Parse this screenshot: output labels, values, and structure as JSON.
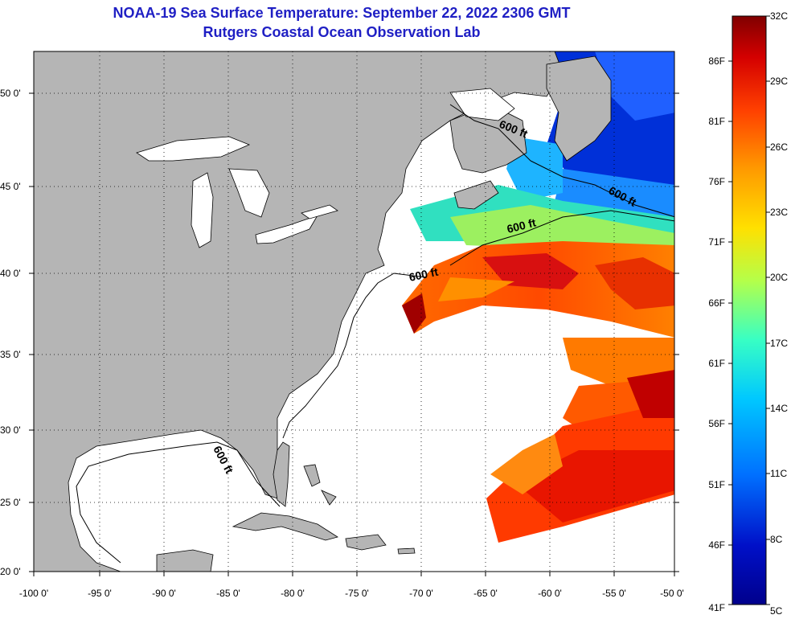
{
  "title": "NOAA-19 Sea Surface Temperature:  September 22, 2022 2306 GMT",
  "subtitle": "Rutgers Coastal Ocean Observation Lab",
  "longitude_ticks": [
    "-100 0'",
    "-95 0'",
    "-90 0'",
    "-85 0'",
    "-80 0'",
    "-75 0'",
    "-70 0'",
    "-65 0'",
    "-60 0'",
    "-55 0'",
    "-50 0'"
  ],
  "latitude_ticks": [
    "50 0'",
    "45 0'",
    "40 0'",
    "35 0'",
    "30 0'",
    "25 0'",
    "20 0'"
  ],
  "isobath_label": "600 ft",
  "colorbar": {
    "celsius": [
      "32C",
      "29C",
      "26C",
      "23C",
      "20C",
      "17C",
      "14C",
      "11C",
      "8C",
      "5C"
    ],
    "fahrenheit": [
      "86F",
      "81F",
      "76F",
      "71F",
      "66F",
      "61F",
      "56F",
      "51F",
      "46F",
      "41F"
    ],
    "colors": [
      "#800000",
      "#d40000",
      "#ff4000",
      "#ff9a00",
      "#ffe000",
      "#b4ff4a",
      "#38ffc4",
      "#00c8ff",
      "#0070ff",
      "#0010c8",
      "#00008c"
    ]
  },
  "colors": {
    "land": "#b5b5b5",
    "title_text": "#1f1fc4",
    "cloud_or_nodata": "#ffffff"
  }
}
